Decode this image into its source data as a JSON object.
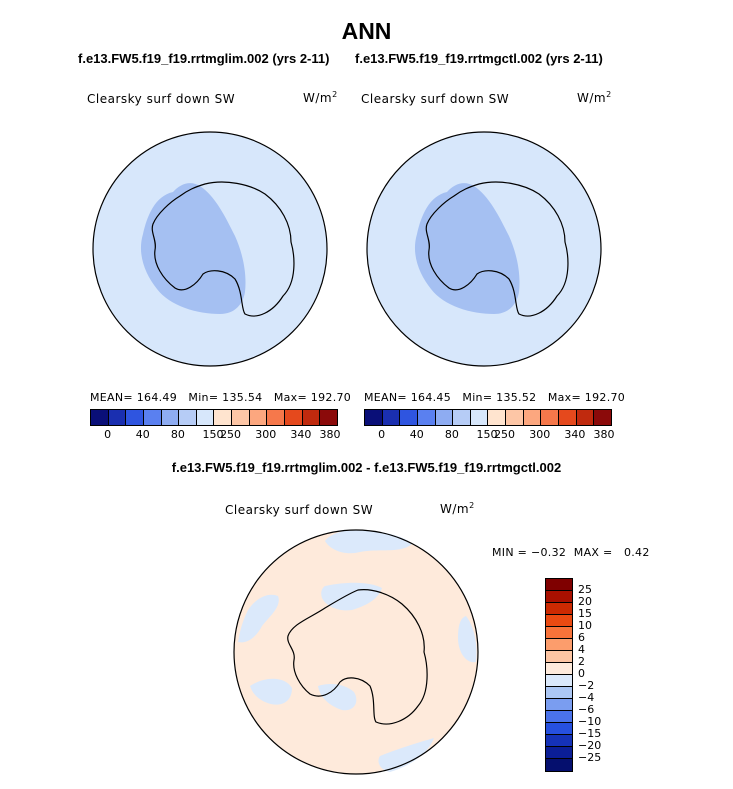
{
  "figure": {
    "title": "ANN",
    "left_case": "f.e13.FW5.f19_f19.rrtmglim.002 (yrs 2-11)",
    "right_case": "f.e13.FW5.f19_f19.rrtmgctl.002 (yrs 2-11)",
    "diff_title": "f.e13.FW5.f19_f19.rrtmglim.002 - f.e13.FW5.f19_f19.rrtmgctl.002"
  },
  "chart_data": [
    {
      "type": "heatmap",
      "projection": "south-polar-stereographic",
      "title": "Clearsky surf down SW",
      "units": "W/m",
      "units_exponent": "2",
      "stats": {
        "mean_label": "MEAN=",
        "mean": "164.49",
        "min_label": "Min=",
        "min": "135.54",
        "max_label": "Max=",
        "max": "192.70"
      },
      "colorbar": {
        "orientation": "horizontal",
        "tick_labels": [
          "0",
          "40",
          "80",
          "150",
          "250",
          "300",
          "340",
          "380"
        ],
        "colors": [
          "#0a0f78",
          "#1a2fb0",
          "#2f55e0",
          "#5a80f0",
          "#8eacf2",
          "#b6ccf6",
          "#d7e7fb",
          "#ffe4cf",
          "#fdc6a6",
          "#fca77f",
          "#f6784b",
          "#e5491d",
          "#c02a0e",
          "#8b0a0a"
        ]
      },
      "field_levels": {
        "ocean_level": "150-250",
        "interior_level": "150-250",
        "wedge_level": "80-150"
      }
    },
    {
      "type": "heatmap",
      "projection": "south-polar-stereographic",
      "title": "Clearsky surf down SW",
      "units": "W/m",
      "units_exponent": "2",
      "stats": {
        "mean_label": "MEAN=",
        "mean": "164.45",
        "min_label": "Min=",
        "min": "135.52",
        "max_label": "Max=",
        "max": "192.70"
      },
      "colorbar": {
        "orientation": "horizontal",
        "tick_labels": [
          "0",
          "40",
          "80",
          "150",
          "250",
          "300",
          "340",
          "380"
        ],
        "colors": [
          "#0a0f78",
          "#1a2fb0",
          "#2f55e0",
          "#5a80f0",
          "#8eacf2",
          "#b6ccf6",
          "#d7e7fb",
          "#ffe4cf",
          "#fdc6a6",
          "#fca77f",
          "#f6784b",
          "#e5491d",
          "#c02a0e",
          "#8b0a0a"
        ]
      },
      "field_levels": {
        "ocean_level": "150-250",
        "interior_level": "150-250",
        "wedge_level": "80-150"
      }
    },
    {
      "type": "heatmap",
      "projection": "south-polar-stereographic",
      "title": "Clearsky surf down SW",
      "units": "W/m",
      "units_exponent": "2",
      "stats": {
        "min_label": "MIN =",
        "min": "−0.32",
        "max_label": "MAX =",
        "max": "0.42"
      },
      "colorbar": {
        "orientation": "vertical",
        "tick_labels": [
          "25",
          "20",
          "15",
          "10",
          "6",
          "4",
          "2",
          "0",
          "−2",
          "−4",
          "−6",
          "−10",
          "−15",
          "−20",
          "−25"
        ],
        "colors": [
          "#7f0000",
          "#a81000",
          "#cc2a02",
          "#ea4a12",
          "#f8733a",
          "#fc9d6c",
          "#fdc5a3",
          "#feeadb",
          "#dbe9fb",
          "#acc7f4",
          "#7a9df0",
          "#4a72ea",
          "#2650df",
          "#1532b8",
          "#0b1e96",
          "#050f6e"
        ]
      },
      "field_levels": {
        "dominant": "0 to 2",
        "patches": "-2 to 0"
      }
    }
  ]
}
